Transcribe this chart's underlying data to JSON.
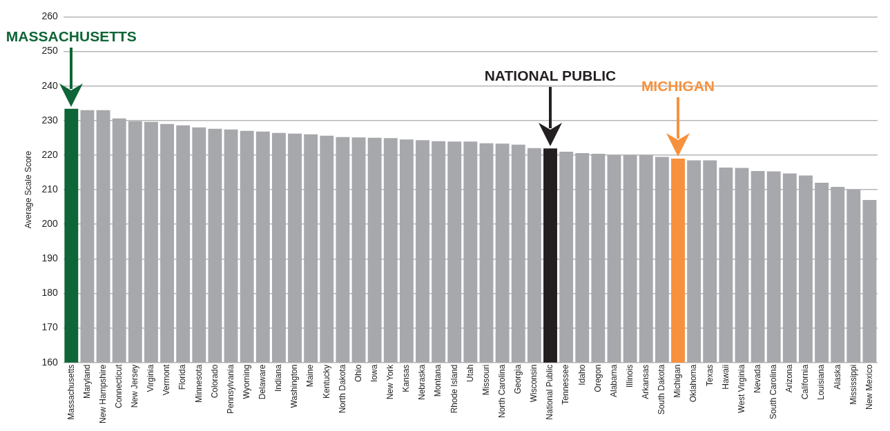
{
  "chart_data": {
    "type": "bar",
    "ylabel": "Average Scale Score",
    "categories": [
      "Massachusetts",
      "Maryland",
      "New Hampshire",
      "Connecticut",
      "New Jersey",
      "Virginia",
      "Vermont",
      "Florida",
      "Minnesota",
      "Colorado",
      "Pennsylvania",
      "Wyoming",
      "Delaware",
      "Indiana",
      "Washington",
      "Maine",
      "Kentucky",
      "North Dakota",
      "Ohio",
      "Iowa",
      "New York",
      "Kansas",
      "Nebraska",
      "Montana",
      "Rhode Island",
      "Utah",
      "Missouri",
      "North Carolina",
      "Georgia",
      "Wisconsin",
      "National Public",
      "Tennessee",
      "Idaho",
      "Oregon",
      "Alabama",
      "Illinois",
      "Arkansas",
      "South Dakota",
      "Michigan",
      "Oklahoma",
      "Texas",
      "Hawaii",
      "West Virginia",
      "Nevada",
      "South Carolina",
      "Arizona",
      "California",
      "Louisiana",
      "Alaska",
      "Mississippi",
      "New Mexico"
    ],
    "values": [
      233.4,
      233,
      233,
      230.6,
      229.8,
      229.6,
      229,
      228.6,
      228,
      227.6,
      227.4,
      227,
      226.8,
      226.4,
      226.2,
      226,
      225.6,
      225.2,
      225.1,
      225,
      224.9,
      224.5,
      224.3,
      224,
      223.9,
      223.9,
      223.4,
      223.3,
      223,
      222,
      221.9,
      221,
      220.6,
      220.4,
      220,
      220,
      220,
      219.5,
      219,
      218.5,
      218.5,
      216.4,
      216.3,
      215.4,
      215.3,
      214.7,
      214.1,
      212,
      210.8,
      210,
      207
    ],
    "colors": [
      "#0e6537",
      "#a7a8ab",
      "#a7a8ab",
      "#a7a8ab",
      "#a7a8ab",
      "#a7a8ab",
      "#a7a8ab",
      "#a7a8ab",
      "#a7a8ab",
      "#a7a8ab",
      "#a7a8ab",
      "#a7a8ab",
      "#a7a8ab",
      "#a7a8ab",
      "#a7a8ab",
      "#a7a8ab",
      "#a7a8ab",
      "#a7a8ab",
      "#a7a8ab",
      "#a7a8ab",
      "#a7a8ab",
      "#a7a8ab",
      "#a7a8ab",
      "#a7a8ab",
      "#a7a8ab",
      "#a7a8ab",
      "#a7a8ab",
      "#a7a8ab",
      "#a7a8ab",
      "#a7a8ab",
      "#231f20",
      "#a7a8ab",
      "#a7a8ab",
      "#a7a8ab",
      "#a7a8ab",
      "#a7a8ab",
      "#a7a8ab",
      "#a7a8ab",
      "#f7913d",
      "#a7a8ab",
      "#a7a8ab",
      "#a7a8ab",
      "#a7a8ab",
      "#a7a8ab",
      "#a7a8ab",
      "#a7a8ab",
      "#a7a8ab",
      "#a7a8ab",
      "#a7a8ab",
      "#a7a8ab",
      "#a7a8ab"
    ],
    "ylim": [
      160,
      260
    ],
    "yticks": [
      160,
      170,
      180,
      190,
      200,
      210,
      220,
      230,
      240,
      250,
      260
    ],
    "grid": "y",
    "legend": false,
    "annotations": [
      {
        "text": "MASSACHUSETTS",
        "x": "Massachusetts"
      },
      {
        "text": "NATIONAL PUBLIC",
        "x": "National Public"
      },
      {
        "text": "MICHIGAN",
        "x": "Michigan"
      }
    ]
  }
}
